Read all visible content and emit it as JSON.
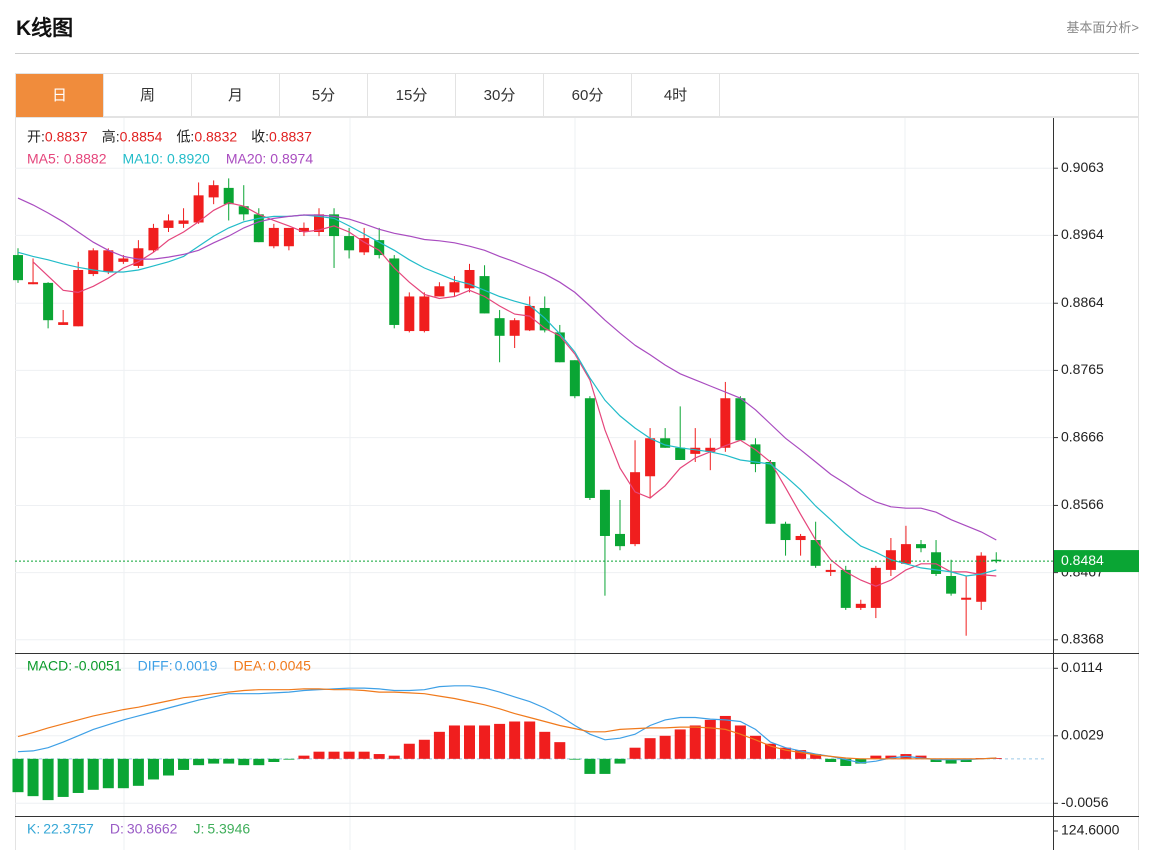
{
  "header": {
    "title": "K线图",
    "link": "基本面分析>"
  },
  "tabs": [
    "日",
    "周",
    "月",
    "5分",
    "15分",
    "30分",
    "60分",
    "4时"
  ],
  "active_tab": 0,
  "chart_data": [
    {
      "type": "candlestick",
      "readings": [
        {
          "label": "开:",
          "value": "0.8837"
        },
        {
          "label": "高:",
          "value": "0.8854"
        },
        {
          "label": "低:",
          "value": "0.8832"
        },
        {
          "label": "收:",
          "value": "0.8837"
        }
      ],
      "up_color": "#f01e1e",
      "down_color": "#0aa534",
      "open": [
        0.8935,
        0.8892,
        0.8894,
        0.8832,
        0.883,
        0.8907,
        0.891,
        0.8925,
        0.8919,
        0.8942,
        0.8975,
        0.8981,
        0.8983,
        0.902,
        0.9034,
        0.9007,
        0.8995,
        0.8948,
        0.8948,
        0.8969,
        0.8969,
        0.8995,
        0.8963,
        0.8939,
        0.8957,
        0.893,
        0.8823,
        0.8823,
        0.8874,
        0.888,
        0.8886,
        0.8904,
        0.8842,
        0.8816,
        0.8824,
        0.8857,
        0.8821,
        0.878,
        0.8724,
        0.8589,
        0.8524,
        0.8509,
        0.8609,
        0.8665,
        0.8651,
        0.8642,
        0.8645,
        0.8651,
        0.8724,
        0.8656,
        0.863,
        0.8539,
        0.8515,
        0.8515,
        0.8468,
        0.8471,
        0.8415,
        0.8415,
        0.8471,
        0.848,
        0.8509,
        0.8497,
        0.8462,
        0.8427,
        0.8424,
        0.8486
      ],
      "close": [
        0.8898,
        0.8895,
        0.8839,
        0.8836,
        0.8913,
        0.8942,
        0.8942,
        0.893,
        0.8945,
        0.8975,
        0.8986,
        0.8986,
        0.9023,
        0.9038,
        0.901,
        0.8995,
        0.8954,
        0.8975,
        0.8975,
        0.8975,
        0.8995,
        0.8963,
        0.8942,
        0.896,
        0.8935,
        0.8832,
        0.8874,
        0.8874,
        0.8889,
        0.8895,
        0.8913,
        0.8849,
        0.8816,
        0.8839,
        0.886,
        0.8824,
        0.8777,
        0.8727,
        0.8577,
        0.8521,
        0.8506,
        0.8615,
        0.8665,
        0.8651,
        0.8633,
        0.8651,
        0.8651,
        0.8724,
        0.8662,
        0.8627,
        0.8539,
        0.8515,
        0.8521,
        0.8477,
        0.8471,
        0.8415,
        0.8421,
        0.8474,
        0.85,
        0.8509,
        0.8503,
        0.8465,
        0.8436,
        0.843,
        0.8492,
        0.8484
      ],
      "high": [
        0.8945,
        0.893,
        0.8895,
        0.8854,
        0.8925,
        0.8945,
        0.8945,
        0.8935,
        0.8957,
        0.8981,
        0.8995,
        0.9004,
        0.9042,
        0.9045,
        0.9048,
        0.9038,
        0.9004,
        0.8981,
        0.8975,
        0.8983,
        0.9004,
        0.9004,
        0.8975,
        0.8975,
        0.8975,
        0.8935,
        0.888,
        0.888,
        0.8895,
        0.8904,
        0.8922,
        0.892,
        0.8854,
        0.8842,
        0.8874,
        0.8874,
        0.8832,
        0.878,
        0.8727,
        0.8589,
        0.8574,
        0.8662,
        0.868,
        0.868,
        0.8712,
        0.868,
        0.8665,
        0.8748,
        0.8727,
        0.8665,
        0.8633,
        0.8542,
        0.8524,
        0.8542,
        0.848,
        0.8477,
        0.8427,
        0.8477,
        0.8518,
        0.8536,
        0.8515,
        0.8515,
        0.8486,
        0.8462,
        0.8497,
        0.8497
      ],
      "low": [
        0.8894,
        0.8892,
        0.8827,
        0.8832,
        0.883,
        0.8904,
        0.8907,
        0.8922,
        0.8916,
        0.8939,
        0.8969,
        0.8975,
        0.8981,
        0.901,
        0.8986,
        0.8986,
        0.8954,
        0.8945,
        0.8942,
        0.8963,
        0.8963,
        0.8916,
        0.893,
        0.8935,
        0.893,
        0.8827,
        0.8821,
        0.8821,
        0.8874,
        0.8874,
        0.888,
        0.8849,
        0.8777,
        0.8798,
        0.8823,
        0.8821,
        0.8777,
        0.8724,
        0.8574,
        0.8433,
        0.85,
        0.8506,
        0.8577,
        0.8651,
        0.8633,
        0.863,
        0.8618,
        0.8645,
        0.8662,
        0.8615,
        0.8539,
        0.8492,
        0.8492,
        0.8474,
        0.8462,
        0.8412,
        0.8412,
        0.84,
        0.8462,
        0.848,
        0.8497,
        0.8462,
        0.8433,
        0.8374,
        0.8412,
        0.8481
      ],
      "series": [
        {
          "name": "MA5:",
          "reading": "0.8882",
          "color": "#e5467c",
          "values": [
            null,
            0.8925,
            0.8904,
            0.8883,
            0.888,
            0.8889,
            0.8901,
            0.8916,
            0.8925,
            0.8939,
            0.8957,
            0.8969,
            0.8984,
            0.9001,
            0.9012,
            0.9007,
            0.8995,
            0.8986,
            0.8978,
            0.8969,
            0.8972,
            0.8978,
            0.8969,
            0.8954,
            0.8942,
            0.8916,
            0.8895,
            0.8877,
            0.8871,
            0.8874,
            0.8883,
            0.8874,
            0.886,
            0.8848,
            0.8845,
            0.8827,
            0.8816,
            0.8789,
            0.8751,
            0.8677,
            0.8621,
            0.8586,
            0.8577,
            0.8595,
            0.8621,
            0.8636,
            0.8645,
            0.8654,
            0.8662,
            0.8648,
            0.863,
            0.8592,
            0.8553,
            0.8515,
            0.8486,
            0.8468,
            0.8456,
            0.8447,
            0.8456,
            0.8471,
            0.848,
            0.848,
            0.8468,
            0.8468,
            0.8464,
            0.8462
          ]
        },
        {
          "name": "MA10:",
          "reading": "0.8920",
          "color": "#22bcc9",
          "values": [
            0.8939,
            0.8933,
            0.8928,
            0.8922,
            0.8917,
            0.8913,
            0.891,
            0.891,
            0.8913,
            0.8919,
            0.8925,
            0.8933,
            0.8948,
            0.8963,
            0.8975,
            0.8984,
            0.8989,
            0.8992,
            0.8992,
            0.8994,
            0.8992,
            0.8989,
            0.8978,
            0.8966,
            0.8954,
            0.8942,
            0.8928,
            0.8916,
            0.8907,
            0.8898,
            0.8892,
            0.8883,
            0.8874,
            0.8867,
            0.8861,
            0.8842,
            0.8819,
            0.8792,
            0.8754,
            0.8721,
            0.8698,
            0.868,
            0.8665,
            0.8655,
            0.8651,
            0.8648,
            0.8645,
            0.864,
            0.8633,
            0.863,
            0.8627,
            0.8609,
            0.8589,
            0.8565,
            0.8545,
            0.8524,
            0.8506,
            0.8497,
            0.8486,
            0.848,
            0.8474,
            0.8471,
            0.8468,
            0.8462,
            0.8465,
            0.8471
          ]
        },
        {
          "name": "MA20:",
          "reading": "0.8974",
          "color": "#a94cc0",
          "values": [
            0.9019,
            0.9009,
            0.8997,
            0.8984,
            0.8969,
            0.8954,
            0.8942,
            0.8933,
            0.8929,
            0.8929,
            0.8932,
            0.8936,
            0.8942,
            0.8953,
            0.8963,
            0.8975,
            0.8984,
            0.8989,
            0.8992,
            0.8994,
            0.8994,
            0.8992,
            0.8988,
            0.8981,
            0.8973,
            0.8967,
            0.8963,
            0.8958,
            0.8956,
            0.8953,
            0.8948,
            0.8942,
            0.8933,
            0.8925,
            0.8916,
            0.8907,
            0.8895,
            0.888,
            0.886,
            0.8839,
            0.882,
            0.8802,
            0.8788,
            0.8773,
            0.876,
            0.8751,
            0.8742,
            0.8733,
            0.8724,
            0.8707,
            0.8686,
            0.8665,
            0.8648,
            0.863,
            0.8612,
            0.8598,
            0.8583,
            0.8571,
            0.8564,
            0.8562,
            0.8562,
            0.8556,
            0.8545,
            0.8536,
            0.8527,
            0.8515
          ]
        }
      ],
      "last_price": 0.8484,
      "last_price_color": "#0aa534",
      "ylim": [
        0.835,
        0.9137
      ],
      "yticks": [
        0.9063,
        0.8964,
        0.8864,
        0.8765,
        0.8666,
        0.8566,
        0.8467,
        0.8368
      ],
      "grid": true
    },
    {
      "type": "macd",
      "up_color": "#f01e1e",
      "down_color": "#0aa534",
      "series": [
        {
          "name": "MACD:",
          "reading": "-0.0051",
          "color": "#0a9a2a",
          "kind": "bar",
          "values": [
            -0.0042,
            -0.0047,
            -0.0052,
            -0.0048,
            -0.0043,
            -0.0039,
            -0.0037,
            -0.0037,
            -0.0034,
            -0.0026,
            -0.0021,
            -0.0014,
            -0.0008,
            -0.0006,
            -0.0006,
            -0.0008,
            -0.0008,
            -0.0004,
            -0.0001,
            0.0004,
            0.0009,
            0.0009,
            0.0009,
            0.0009,
            0.0006,
            0.0004,
            0.0019,
            0.0024,
            0.0034,
            0.0042,
            0.0042,
            0.0042,
            0.0044,
            0.0047,
            0.0047,
            0.0034,
            0.0021,
            -0.0001,
            -0.0019,
            -0.0019,
            -0.0006,
            0.0014,
            0.0026,
            0.0029,
            0.0037,
            0.0042,
            0.0049,
            0.0054,
            0.0042,
            0.0029,
            0.0019,
            0.0014,
            0.0011,
            0.0006,
            -0.0004,
            -0.0009,
            -0.0006,
            0.0004,
            0.0004,
            0.0006,
            0.0004,
            -0.0004,
            -0.0006,
            -0.0004,
            0.0001,
            0.0001
          ]
        },
        {
          "name": "DIFF:",
          "reading": "0.0019",
          "color": "#3ea0e6",
          "kind": "line",
          "values": [
            0.0009,
            0.001,
            0.0014,
            0.0021,
            0.0029,
            0.0037,
            0.0043,
            0.0049,
            0.0054,
            0.0059,
            0.0064,
            0.0069,
            0.0074,
            0.0078,
            0.0082,
            0.0082,
            0.0082,
            0.0083,
            0.0084,
            0.0086,
            0.0087,
            0.0088,
            0.0089,
            0.0089,
            0.0088,
            0.0086,
            0.0086,
            0.0087,
            0.0091,
            0.0092,
            0.0092,
            0.0089,
            0.0084,
            0.0078,
            0.0072,
            0.0064,
            0.0054,
            0.0042,
            0.0031,
            0.0024,
            0.0026,
            0.0031,
            0.0042,
            0.0049,
            0.0052,
            0.0052,
            0.005,
            0.0049,
            0.0047,
            0.0037,
            0.0021,
            0.0014,
            0.001,
            0.0006,
            0.0003,
            -0.0001,
            -0.0005,
            -0.0003,
            0.0001,
            0.0003,
            0.0001,
            -0.0001,
            -0.0001,
            -0.0001,
            0,
            0.0001
          ]
        },
        {
          "name": "DEA:",
          "reading": "0.0045",
          "color": "#f07a1c",
          "kind": "line",
          "values": [
            0.0028,
            0.0033,
            0.0039,
            0.0044,
            0.0049,
            0.0054,
            0.0058,
            0.0062,
            0.0065,
            0.0069,
            0.0073,
            0.0077,
            0.0079,
            0.0082,
            0.0084,
            0.0086,
            0.0087,
            0.0087,
            0.0087,
            0.0088,
            0.0088,
            0.0087,
            0.0087,
            0.0086,
            0.0084,
            0.0084,
            0.0083,
            0.0082,
            0.0079,
            0.0076,
            0.0072,
            0.0068,
            0.0063,
            0.0057,
            0.0052,
            0.0047,
            0.0042,
            0.0038,
            0.0034,
            0.0034,
            0.0037,
            0.0038,
            0.0039,
            0.0039,
            0.004,
            0.004,
            0.0039,
            0.0037,
            0.0031,
            0.0024,
            0.0016,
            0.0011,
            0.0008,
            0.0005,
            0.0003,
            0.0001,
            0,
            0,
            0,
            0,
            0,
            0,
            0,
            0,
            0,
            0.0001
          ]
        }
      ],
      "ylim": [
        -0.0072,
        0.0132
      ],
      "yticks": [
        0.0114,
        0.0029,
        -0.0056
      ],
      "grid": true
    },
    {
      "type": "kdj",
      "readings": [
        {
          "label": "K:",
          "value": "22.3757",
          "color": "#35a7d6"
        },
        {
          "label": "D:",
          "value": "30.8662",
          "color": "#9a5cc6"
        },
        {
          "label": "J:",
          "value": "5.3946",
          "color": "#3fae5a"
        }
      ],
      "yticks": [
        {
          "value": 124.6,
          "label": "124.6000"
        }
      ]
    }
  ]
}
